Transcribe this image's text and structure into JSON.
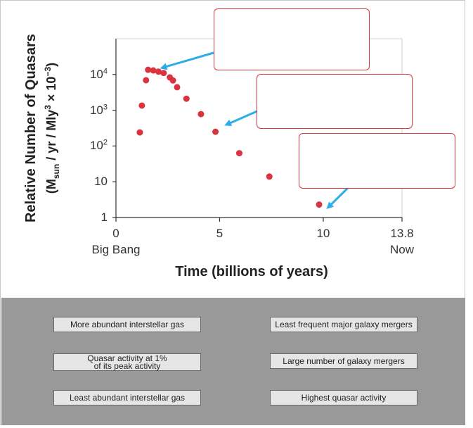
{
  "chart_data": {
    "type": "scatter",
    "xlabel": "Time (billions of years)",
    "ylabel_line1": "Relative Number of Quasars",
    "ylabel_line2": "(M",
    "ylabel_sub": "sun",
    "ylabel_line2b": " / yr / Mly",
    "ylabel_sup": "3",
    "ylabel_line2c": " × 10",
    "ylabel_sup2": "−3",
    "ylabel_end": ")",
    "xlim": [
      0,
      13.8
    ],
    "ylim_log10": [
      0,
      5
    ],
    "x_ticks": [
      {
        "value": 0,
        "label": "0",
        "sub": "Big Bang"
      },
      {
        "value": 5,
        "label": "5",
        "sub": ""
      },
      {
        "value": 10,
        "label": "10",
        "sub": ""
      },
      {
        "value": 13.8,
        "label": "13.8",
        "sub": "Now"
      }
    ],
    "y_ticks": [
      {
        "value": 1,
        "base": "1",
        "exp": ""
      },
      {
        "value": 10,
        "base": "10",
        "exp": ""
      },
      {
        "value": 100,
        "base": "10",
        "exp": "2"
      },
      {
        "value": 1000,
        "base": "10",
        "exp": "3"
      },
      {
        "value": 10000,
        "base": "10",
        "exp": "4"
      }
    ],
    "points": [
      {
        "x": 1.15,
        "y": 240
      },
      {
        "x": 1.25,
        "y": 1350
      },
      {
        "x": 1.45,
        "y": 6900
      },
      {
        "x": 1.55,
        "y": 13500
      },
      {
        "x": 1.8,
        "y": 13000
      },
      {
        "x": 2.05,
        "y": 12000
      },
      {
        "x": 2.3,
        "y": 11000
      },
      {
        "x": 2.6,
        "y": 8300
      },
      {
        "x": 2.75,
        "y": 6800
      },
      {
        "x": 2.95,
        "y": 4400
      },
      {
        "x": 3.4,
        "y": 2100
      },
      {
        "x": 4.1,
        "y": 780
      },
      {
        "x": 4.8,
        "y": 250
      },
      {
        "x": 5.95,
        "y": 63
      },
      {
        "x": 7.4,
        "y": 14
      },
      {
        "x": 9.8,
        "y": 2.3
      }
    ],
    "point_color": "#d9333f",
    "arrow_color": "#2eaee8",
    "drop_box_border": "#d43a3a"
  },
  "labels": {
    "more_gas": "More abundant interstellar gas",
    "quasar_1pct": "Quasar activity at 1%\nof its peak activity",
    "least_gas": "Least abundant interstellar gas",
    "least_mergers": "Least frequent major galaxy mergers",
    "many_mergers": "Large number of galaxy mergers",
    "highest_activity": "Highest quasar activity"
  },
  "colors": {
    "bank_background": "#999999",
    "button_background": "#e6e6e6"
  }
}
